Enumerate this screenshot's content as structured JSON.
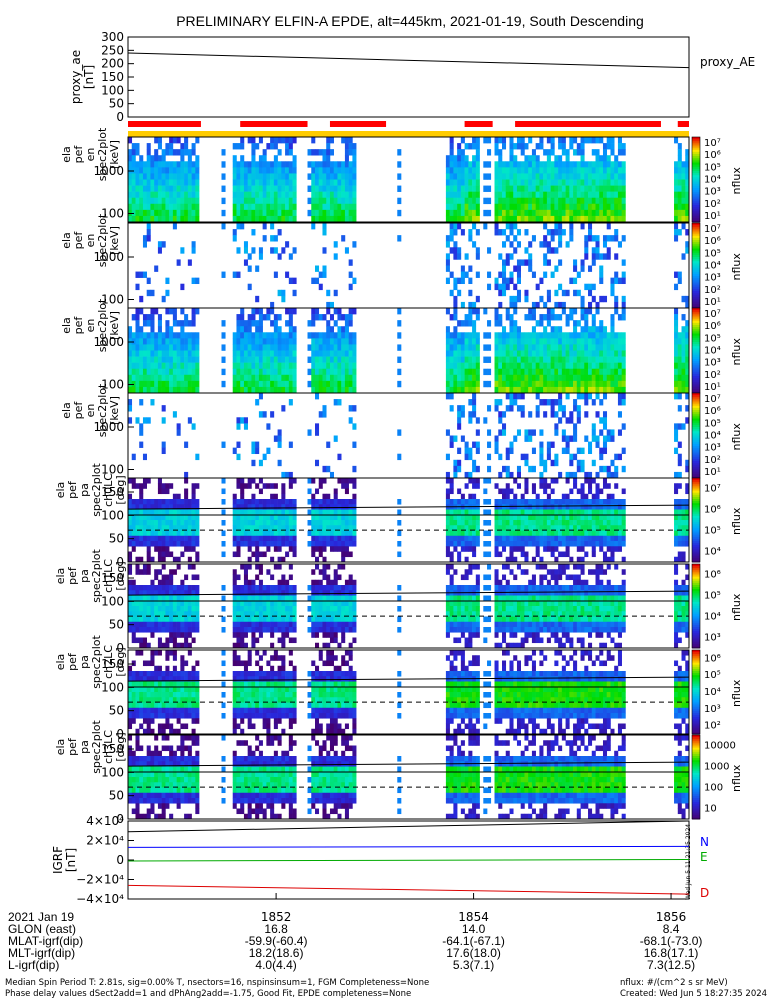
{
  "title": "PRELIMINARY ELFIN-A EPDE, alt=445km, 2021-01-19, South Descending",
  "colors": {
    "quality_bar": "#ff0000",
    "orbit_bar": "#ffcc00",
    "n_component": "#0000ff",
    "e_component": "#00aa00",
    "d_component": "#dd0000",
    "trace": "#000000"
  },
  "panels": {
    "proxy_ae": {
      "ylabel": [
        "proxy_ae",
        "[nT]"
      ],
      "yticks": [
        "300",
        "250",
        "200",
        "150",
        "100",
        "50",
        "0"
      ],
      "side_label": "proxy_AE"
    },
    "energy_panels": [
      {
        "ylabel": [
          "ela",
          "pef",
          "en",
          "spec2plot",
          "[keV]"
        ],
        "yticks": [
          "1000",
          "100"
        ],
        "cbar_ticks": [
          "10⁷",
          "10⁶",
          "10⁵",
          "10⁴",
          "10³",
          "10²",
          "10¹"
        ],
        "cbar_label": "nflux"
      },
      {
        "ylabel": [
          "ela",
          "pef",
          "en",
          "spec2plot",
          "[keV]"
        ],
        "yticks": [
          "1000",
          "100"
        ],
        "cbar_ticks": [
          "10⁷",
          "10⁶",
          "10⁵",
          "10⁴",
          "10³",
          "10²",
          "10¹"
        ],
        "cbar_label": "nflux"
      },
      {
        "ylabel": [
          "ela",
          "pef",
          "en",
          "spec2plot",
          "[keV]"
        ],
        "yticks": [
          "1000",
          "100"
        ],
        "cbar_ticks": [
          "10⁷",
          "10⁶",
          "10⁵",
          "10⁴",
          "10³",
          "10²",
          "10¹"
        ],
        "cbar_label": "nflux"
      },
      {
        "ylabel": [
          "ela",
          "pef",
          "en",
          "spec2plot",
          "[keV]"
        ],
        "yticks": [
          "1000",
          "100"
        ],
        "cbar_ticks": [
          "10⁷",
          "10⁶",
          "10⁵",
          "10⁴",
          "10³",
          "10²",
          "10¹"
        ],
        "cbar_label": "nflux"
      }
    ],
    "pitch_panels": [
      {
        "ylabel": [
          "ela",
          "pef",
          "pa",
          "spec2plot",
          "ch0LC",
          "[deg]"
        ],
        "yticks": [
          "150",
          "100",
          "50",
          "0"
        ],
        "cbar_ticks": [
          "10⁷",
          "10⁶",
          "10⁵",
          "10⁴"
        ],
        "cbar_label": "nflux"
      },
      {
        "ylabel": [
          "ela",
          "pef",
          "pa",
          "spec2plot",
          "ch1LC",
          "[deg]"
        ],
        "yticks": [
          "150",
          "100",
          "50",
          "0"
        ],
        "cbar_ticks": [
          "10⁶",
          "10⁵",
          "10⁴",
          "10³"
        ],
        "cbar_label": "nflux"
      },
      {
        "ylabel": [
          "ela",
          "pef",
          "pa",
          "spec2plot",
          "ch2LC",
          "[deg]"
        ],
        "yticks": [
          "150",
          "100",
          "50",
          "0"
        ],
        "cbar_ticks": [
          "10⁶",
          "10⁵",
          "10⁴",
          "10³",
          "10²"
        ],
        "cbar_label": "nflux"
      },
      {
        "ylabel": [
          "ela",
          "pef",
          "pa",
          "spec2plot",
          "ch3LC",
          "[deg]"
        ],
        "yticks": [
          "150",
          "100",
          "50",
          "0"
        ],
        "cbar_ticks": [
          "10000",
          "1000",
          "100",
          "10"
        ],
        "cbar_label": "nflux"
      }
    ],
    "igrf": {
      "ylabel": [
        "IGRF",
        "[nT]"
      ],
      "yticks": [
        "4×10⁴",
        "2×10⁴",
        "0",
        "−2×10⁴",
        "−4×10⁴"
      ],
      "legend": [
        "N",
        "E",
        "D"
      ],
      "side_stamp": "Wed Jun  5 11:21:35 2024"
    }
  },
  "xaxis": {
    "ticks": [
      "1852",
      "1854",
      "1856"
    ]
  },
  "footer_table": {
    "rows": [
      [
        "2021 Jan 19",
        "",
        "",
        ""
      ],
      [
        "GLON (east)",
        "16.8",
        "14.0",
        "8.4"
      ],
      [
        "MLAT-igrf(dip)",
        "-59.9(-60.4)",
        "-64.1(-67.1)",
        "-68.1(-73.0)"
      ],
      [
        "MLT-igrf(dip)",
        "18.2(18.6)",
        "17.6(18.0)",
        "16.8(17.1)"
      ],
      [
        "L-igrf(dip)",
        "4.0(4.4)",
        "5.3(7.1)",
        "7.3(12.5)"
      ]
    ]
  },
  "notes": {
    "line1_left": "Median Spin Period T: 2.81s, sig=0.00% T, nsectors=16, nspinsinsum=1, FGM Completeness=None",
    "line2_left": "Phase delay values dSect2add=1 and dPhAng2add=-1.75, Good Fit, EPDE completeness=None",
    "line1_right": "nflux: #/(cm^2 s sr MeV)",
    "line2_right": "Created: Wed Jun  5 18:27:35 2024"
  },
  "chart_data": {
    "type": "heatmap",
    "title": "PRELIMINARY ELFIN-A EPDE, alt=445km, 2021-01-19, South Descending",
    "x_ticks": [
      "1852",
      "1854",
      "1856"
    ],
    "proxy_ae": {
      "type": "line",
      "ylim": [
        0,
        300
      ],
      "y_start": 240,
      "y_end": 185
    },
    "quality_segments": [
      [
        0,
        0.13
      ],
      [
        0.2,
        0.32
      ],
      [
        0.36,
        0.46
      ],
      [
        0.6,
        0.65
      ],
      [
        0.69,
        0.95
      ],
      [
        0.98,
        1.0
      ]
    ],
    "igrf": {
      "type": "line",
      "ylim": [
        -40000,
        40000
      ],
      "series": [
        {
          "name": "N",
          "start": 13000,
          "end": 14000
        },
        {
          "name": "E",
          "start": -1000,
          "end": 500
        },
        {
          "name": "D",
          "start": -26000,
          "end": -35000
        },
        {
          "name": "",
          "start": 29000,
          "end": 40000
        }
      ]
    }
  }
}
